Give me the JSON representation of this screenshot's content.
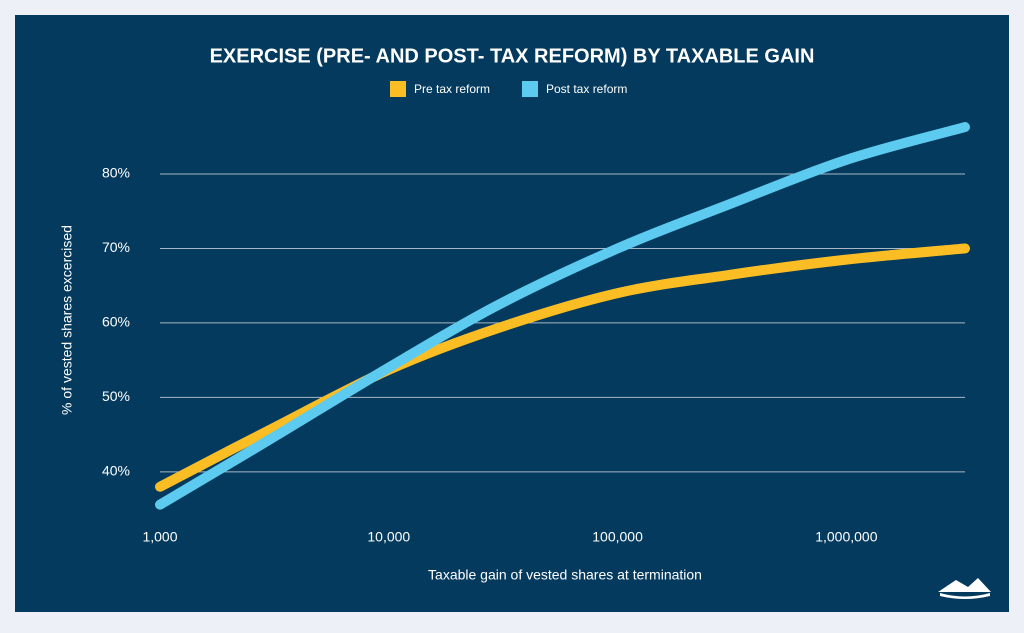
{
  "chart_data": {
    "type": "line",
    "title": "EXERCISE (PRE- AND POST- TAX REFORM) BY TAXABLE GAIN",
    "x_label": "Taxable gain of vested shares at termination",
    "y_label": "% of vested shares excercised",
    "x": [
      1000,
      3000,
      10000,
      30000,
      100000,
      300000,
      1000000,
      3300000
    ],
    "series": [
      {
        "name": "Pre tax reform",
        "color": "#fbbd24",
        "values": [
          38.0,
          45.6,
          53.7,
          59.3,
          64.0,
          66.4,
          68.5,
          70.0
        ]
      },
      {
        "name": "Post tax reform",
        "color": "#5ccbef",
        "values": [
          35.6,
          44.3,
          54.0,
          62.4,
          70.0,
          75.8,
          81.9,
          86.3
        ]
      }
    ],
    "xscale": "log",
    "xlim": [
      1000,
      3300000
    ],
    "xticks": [
      {
        "value": 1000,
        "label": "1,000"
      },
      {
        "value": 10000,
        "label": "10,000"
      },
      {
        "value": 100000,
        "label": "100,000"
      },
      {
        "value": 1000000,
        "label": "1,000,000"
      }
    ],
    "ylim": [
      33,
      88
    ],
    "yticks": [
      {
        "value": 40,
        "label": "40%"
      },
      {
        "value": 50,
        "label": "50%"
      },
      {
        "value": 60,
        "label": "60%"
      },
      {
        "value": 70,
        "label": "70%"
      },
      {
        "value": 80,
        "label": "80%"
      }
    ],
    "grid": true,
    "legend": "top"
  }
}
